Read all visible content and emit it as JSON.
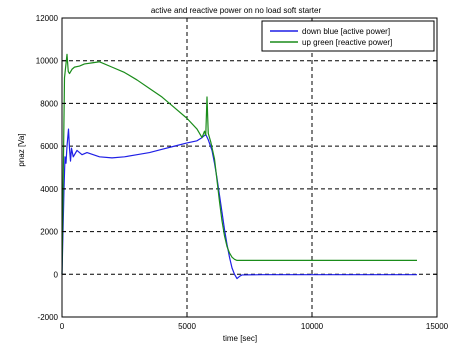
{
  "chart_data": {
    "type": "line",
    "title": "active and reactive power on no load soft starter",
    "xlabel": "time [sec]",
    "ylabel": "pnaz [Va]",
    "xlim": [
      0,
      15000
    ],
    "ylim": [
      -2000,
      12000
    ],
    "x_ticks": [
      0,
      5000,
      10000,
      15000
    ],
    "x_tick_labels": [
      "0",
      "5000",
      "10000",
      "15000"
    ],
    "y_ticks": [
      -2000,
      0,
      2000,
      4000,
      6000,
      8000,
      10000,
      12000
    ],
    "y_tick_labels": [
      "-2000",
      "0",
      "2000",
      "4000",
      "6000",
      "8000",
      "10000",
      "12000"
    ],
    "grid": true,
    "legend_position": "top-right",
    "colors": {
      "blue": "#1f1fe6",
      "green": "#1a8c1a",
      "grid": "#000000",
      "axis": "#000000"
    },
    "series": [
      {
        "name": "down blue [active power]",
        "color": "#1f1fe6",
        "points": [
          [
            0,
            0
          ],
          [
            40,
            2000
          ],
          [
            80,
            4000
          ],
          [
            120,
            5500
          ],
          [
            160,
            5200
          ],
          [
            200,
            6000
          ],
          [
            260,
            6800
          ],
          [
            300,
            5900
          ],
          [
            340,
            5300
          ],
          [
            380,
            5900
          ],
          [
            450,
            5500
          ],
          [
            600,
            5800
          ],
          [
            800,
            5600
          ],
          [
            1000,
            5700
          ],
          [
            1500,
            5500
          ],
          [
            2000,
            5450
          ],
          [
            2500,
            5500
          ],
          [
            3000,
            5600
          ],
          [
            3500,
            5700
          ],
          [
            4000,
            5850
          ],
          [
            4500,
            6000
          ],
          [
            5000,
            6150
          ],
          [
            5400,
            6250
          ],
          [
            5600,
            6400
          ],
          [
            5750,
            6550
          ],
          [
            5850,
            6300
          ],
          [
            6000,
            5800
          ],
          [
            6100,
            5200
          ],
          [
            6200,
            4500
          ],
          [
            6300,
            3700
          ],
          [
            6400,
            2900
          ],
          [
            6500,
            2100
          ],
          [
            6600,
            1400
          ],
          [
            6700,
            800
          ],
          [
            6800,
            300
          ],
          [
            6900,
            0
          ],
          [
            7000,
            -200
          ],
          [
            7100,
            -100
          ],
          [
            7200,
            -30
          ],
          [
            8000,
            -20
          ],
          [
            10000,
            -20
          ],
          [
            12000,
            -20
          ],
          [
            14200,
            -20
          ]
        ]
      },
      {
        "name": "up green [reactive power]",
        "color": "#1a8c1a",
        "points": [
          [
            0,
            0
          ],
          [
            100,
            9200
          ],
          [
            200,
            10300
          ],
          [
            250,
            9500
          ],
          [
            300,
            9400
          ],
          [
            400,
            9600
          ],
          [
            500,
            9700
          ],
          [
            700,
            9750
          ],
          [
            900,
            9850
          ],
          [
            1200,
            9900
          ],
          [
            1500,
            9950
          ],
          [
            2000,
            9700
          ],
          [
            2500,
            9450
          ],
          [
            3000,
            9100
          ],
          [
            3500,
            8700
          ],
          [
            4000,
            8300
          ],
          [
            4500,
            7800
          ],
          [
            5000,
            7300
          ],
          [
            5400,
            6800
          ],
          [
            5600,
            6400
          ],
          [
            5700,
            6700
          ],
          [
            5750,
            6500
          ],
          [
            5800,
            8300
          ],
          [
            5850,
            6600
          ],
          [
            5950,
            6200
          ],
          [
            6100,
            5400
          ],
          [
            6200,
            4400
          ],
          [
            6300,
            3400
          ],
          [
            6400,
            2500
          ],
          [
            6500,
            1800
          ],
          [
            6600,
            1300
          ],
          [
            6700,
            1000
          ],
          [
            6800,
            800
          ],
          [
            6900,
            700
          ],
          [
            7000,
            650
          ],
          [
            7500,
            650
          ],
          [
            8000,
            650
          ],
          [
            10000,
            650
          ],
          [
            12000,
            650
          ],
          [
            14200,
            650
          ]
        ]
      }
    ]
  }
}
